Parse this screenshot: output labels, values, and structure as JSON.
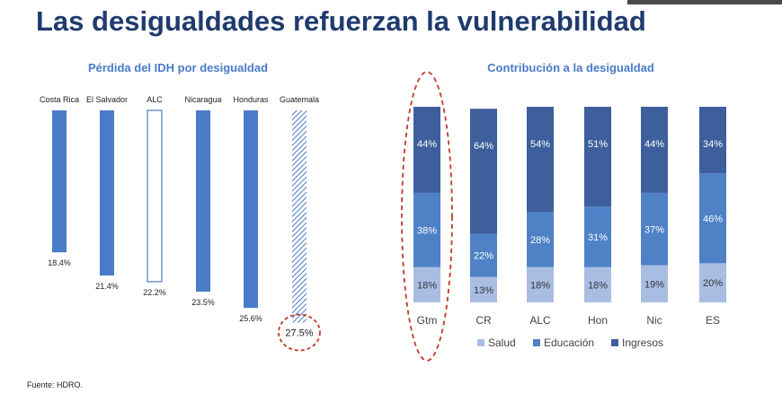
{
  "page": {
    "title": "Las desigualdades refuerzan la vulnerabilidad",
    "source": "Fuente: HDRO."
  },
  "colors": {
    "title": "#1f3b6e",
    "bar_blue": "#4a7bc8",
    "salud": "#a9bde3",
    "educacion": "#4f81c7",
    "ingresos": "#3d5f9c",
    "highlight": "#c0392b"
  },
  "chart_data": [
    {
      "type": "bar",
      "title": "Pérdida del IDH por desigualdad",
      "categories": [
        "Costa Rica",
        "El Salvador",
        "ALC",
        "Nicaragua",
        "Honduras",
        "Guatemala"
      ],
      "values": [
        18.4,
        21.4,
        22.2,
        23.5,
        25.6,
        27.5
      ],
      "value_labels": [
        "18.4%",
        "21.4%",
        "22.2%",
        "23.5%",
        "25.6%",
        "27.5%"
      ],
      "styles": [
        "solid",
        "solid",
        "outline",
        "solid",
        "solid",
        "hatched"
      ],
      "direction": "downward",
      "highlight": "Guatemala"
    },
    {
      "type": "bar",
      "stacked": true,
      "title": "Contribución a la desigualdad",
      "categories": [
        "Gtm",
        "CR",
        "ALC",
        "Hon",
        "Nic",
        "ES"
      ],
      "series": [
        {
          "name": "Salud",
          "values": [
            18,
            13,
            18,
            18,
            19,
            20
          ],
          "labels": [
            "18%",
            "13%",
            "18%",
            "18%",
            "19%",
            "20%"
          ]
        },
        {
          "name": "Educación",
          "values": [
            38,
            22,
            28,
            31,
            37,
            46
          ],
          "labels": [
            "38%",
            "22%",
            "28%",
            "31%",
            "37%",
            "46%"
          ]
        },
        {
          "name": "Ingresos",
          "values": [
            44,
            64,
            54,
            51,
            44,
            34
          ],
          "labels": [
            "44%",
            "64%",
            "54%",
            "51%",
            "44%",
            "34%"
          ]
        }
      ],
      "legend": "bottom",
      "highlight": "Gtm"
    }
  ]
}
